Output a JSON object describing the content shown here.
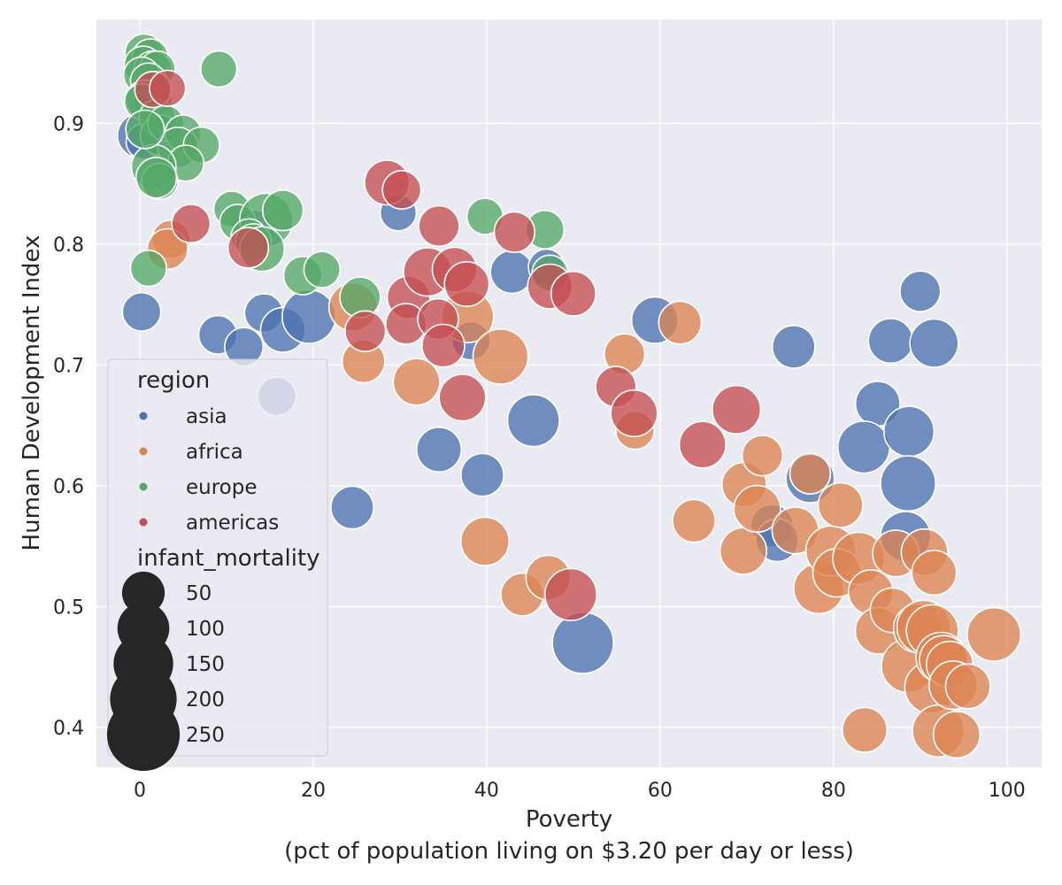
{
  "chart_data": {
    "type": "scatter",
    "title": "",
    "xlabel": "Poverty",
    "xlabel_line2": "(pct of population living on $3.20 per day or less)",
    "ylabel": "Human Development Index",
    "xlim": [
      -5,
      104
    ],
    "ylim": [
      0.367,
      0.986
    ],
    "x_ticks": [
      0,
      20,
      40,
      60,
      80,
      100
    ],
    "x_tick_labels": [
      "0",
      "20",
      "40",
      "60",
      "80",
      "100"
    ],
    "y_ticks": [
      0.4,
      0.5,
      0.6,
      0.7,
      0.8,
      0.9
    ],
    "y_tick_labels": [
      "0.4",
      "0.5",
      "0.6",
      "0.7",
      "0.8",
      "0.9"
    ],
    "grid": true,
    "legend_placement": "lower-left",
    "hue_title": "region",
    "size_title": "infant_mortality",
    "colors": {
      "asia": "#4c72b0",
      "africa": "#dd8452",
      "europe": "#55a868",
      "americas": "#c44e52",
      "background": "#eaeaf2",
      "grid": "#ffffff",
      "legend_size_marker": "#262626"
    },
    "size_legend": [
      {
        "label": "50",
        "value": 50
      },
      {
        "label": "100",
        "value": 100
      },
      {
        "label": "150",
        "value": 150
      },
      {
        "label": "200",
        "value": 200
      },
      {
        "label": "250",
        "value": 250
      }
    ],
    "series": [
      {
        "name": "asia",
        "points": [
          [
            0,
            0.89,
            60
          ],
          [
            0.5,
            0.885,
            20
          ],
          [
            1.2,
            0.918,
            10
          ],
          [
            1.8,
            0.92,
            10
          ],
          [
            0.2,
            0.744,
            30
          ],
          [
            9,
            0.725,
            30
          ],
          [
            12,
            0.715,
            30
          ],
          [
            14.3,
            0.743,
            30
          ],
          [
            16.5,
            0.729,
            60
          ],
          [
            19.5,
            0.74,
            110
          ],
          [
            13,
            0.81,
            60
          ],
          [
            15.8,
            0.674,
            30
          ],
          [
            24.5,
            0.582,
            50
          ],
          [
            29.8,
            0.826,
            20
          ],
          [
            34.5,
            0.63,
            60
          ],
          [
            38.2,
            0.72,
            30
          ],
          [
            39.5,
            0.609,
            50
          ],
          [
            42.9,
            0.777,
            50
          ],
          [
            46.9,
            0.781,
            20
          ],
          [
            45.4,
            0.654,
            100
          ],
          [
            51.1,
            0.47,
            160
          ],
          [
            59.4,
            0.737,
            70
          ],
          [
            75.4,
            0.715,
            50
          ],
          [
            77.3,
            0.606,
            80
          ],
          [
            72.9,
            0.567,
            50
          ],
          [
            73.5,
            0.555,
            50
          ],
          [
            85.1,
            0.668,
            60
          ],
          [
            83.5,
            0.632,
            100
          ],
          [
            86.6,
            0.72,
            60
          ],
          [
            90,
            0.761,
            40
          ],
          [
            91.6,
            0.718,
            80
          ],
          [
            88.7,
            0.645,
            90
          ],
          [
            88.6,
            0.602,
            120
          ],
          [
            88.3,
            0.558,
            90
          ]
        ]
      },
      {
        "name": "africa",
        "points": [
          [
            3.6,
            0.804,
            30
          ],
          [
            3.2,
            0.796,
            40
          ],
          [
            24.6,
            0.748,
            80
          ],
          [
            25.8,
            0.703,
            50
          ],
          [
            31.9,
            0.686,
            70
          ],
          [
            37.8,
            0.74,
            100
          ],
          [
            41.6,
            0.707,
            120
          ],
          [
            39.8,
            0.554,
            80
          ],
          [
            44.1,
            0.51,
            50
          ],
          [
            47.1,
            0.524,
            60
          ],
          [
            55.9,
            0.709,
            40
          ],
          [
            57.1,
            0.646,
            30
          ],
          [
            62.3,
            0.735,
            50
          ],
          [
            63.9,
            0.571,
            50
          ],
          [
            69.7,
            0.601,
            60
          ],
          [
            69.6,
            0.546,
            70
          ],
          [
            71.8,
            0.625,
            40
          ],
          [
            71.2,
            0.581,
            70
          ],
          [
            75.6,
            0.563,
            70
          ],
          [
            77.3,
            0.61,
            40
          ],
          [
            78.3,
            0.515,
            90
          ],
          [
            79.7,
            0.546,
            90
          ],
          [
            80.4,
            0.528,
            80
          ],
          [
            80.8,
            0.584,
            60
          ],
          [
            82.9,
            0.54,
            100
          ],
          [
            83.6,
            0.398,
            60
          ],
          [
            84.3,
            0.512,
            60
          ],
          [
            85.2,
            0.48,
            70
          ],
          [
            86.8,
            0.497,
            60
          ],
          [
            87.2,
            0.544,
            70
          ],
          [
            88.6,
            0.451,
            110
          ],
          [
            89.7,
            0.482,
            80
          ],
          [
            90.4,
            0.483,
            110
          ],
          [
            90.5,
            0.545,
            70
          ],
          [
            91.4,
            0.48,
            100
          ],
          [
            91.6,
            0.528,
            60
          ],
          [
            91.2,
            0.433,
            100
          ],
          [
            92.1,
            0.397,
            100
          ],
          [
            92.4,
            0.458,
            90
          ],
          [
            92.7,
            0.456,
            80
          ],
          [
            93.4,
            0.452,
            70
          ],
          [
            93.8,
            0.435,
            80
          ],
          [
            94.2,
            0.394,
            70
          ],
          [
            95.5,
            0.434,
            60
          ],
          [
            98.5,
            0.477,
            110
          ]
        ]
      },
      {
        "name": "europe",
        "points": [
          [
            0.5,
            0.958,
            30
          ],
          [
            1.2,
            0.955,
            20
          ],
          [
            0.4,
            0.948,
            30
          ],
          [
            1.5,
            0.944,
            30
          ],
          [
            2.0,
            0.945,
            20
          ],
          [
            0.2,
            0.94,
            20
          ],
          [
            1.0,
            0.935,
            20
          ],
          [
            1.6,
            0.928,
            20
          ],
          [
            0.6,
            0.92,
            30
          ],
          [
            0.3,
            0.918,
            20
          ],
          [
            2.0,
            0.905,
            20
          ],
          [
            2.4,
            0.89,
            40
          ],
          [
            3.0,
            0.9,
            20
          ],
          [
            5.0,
            0.892,
            20
          ],
          [
            4.4,
            0.88,
            40
          ],
          [
            7.1,
            0.882,
            20
          ],
          [
            5.3,
            0.867,
            20
          ],
          [
            1.6,
            0.864,
            60
          ],
          [
            2.3,
            0.852,
            20
          ],
          [
            1.9,
            0.855,
            40
          ],
          [
            0.6,
            0.895,
            30
          ],
          [
            9.1,
            0.945,
            20
          ],
          [
            1.0,
            0.78,
            20
          ],
          [
            10.6,
            0.829,
            20
          ],
          [
            11.3,
            0.818,
            20
          ],
          [
            14.6,
            0.82,
            110
          ],
          [
            12.6,
            0.806,
            20
          ],
          [
            13.1,
            0.802,
            20
          ],
          [
            14.1,
            0.796,
            60
          ],
          [
            16.5,
            0.828,
            40
          ],
          [
            18.8,
            0.774,
            30
          ],
          [
            21.0,
            0.779,
            20
          ],
          [
            25.4,
            0.756,
            40
          ],
          [
            39.8,
            0.823,
            20
          ],
          [
            46.7,
            0.812,
            30
          ],
          [
            47.3,
            0.776,
            20
          ]
        ]
      },
      {
        "name": "americas",
        "points": [
          [
            1.5,
            0.928,
            20
          ],
          [
            3.2,
            0.929,
            20
          ],
          [
            5.9,
            0.817,
            30
          ],
          [
            12.5,
            0.797,
            40
          ],
          [
            28.5,
            0.851,
            60
          ],
          [
            30.2,
            0.845,
            30
          ],
          [
            31.0,
            0.756,
            50
          ],
          [
            30.7,
            0.734,
            40
          ],
          [
            33.2,
            0.777,
            80
          ],
          [
            34.4,
            0.738,
            40
          ],
          [
            34.5,
            0.815,
            40
          ],
          [
            35.0,
            0.716,
            50
          ],
          [
            36.3,
            0.779,
            60
          ],
          [
            37.7,
            0.767,
            60
          ],
          [
            37.2,
            0.673,
            70
          ],
          [
            43.2,
            0.81,
            40
          ],
          [
            47.3,
            0.765,
            60
          ],
          [
            50.0,
            0.759,
            60
          ],
          [
            49.7,
            0.51,
            100
          ],
          [
            54.9,
            0.682,
            40
          ],
          [
            57.0,
            0.66,
            70
          ],
          [
            64.9,
            0.634,
            70
          ],
          [
            68.8,
            0.663,
            80
          ],
          [
            26.0,
            0.728,
            40
          ]
        ]
      }
    ]
  }
}
